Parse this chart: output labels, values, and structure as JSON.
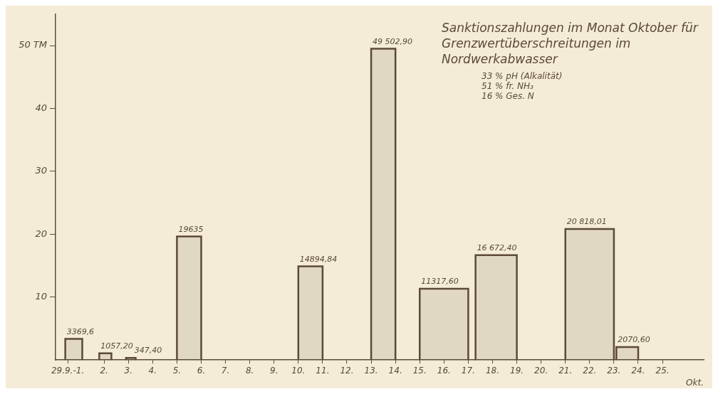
{
  "chart_data": {
    "type": "histogram",
    "title": "Sanktionszahlungen im Monat Oktober für Grenzwertüberschreitungen im Nordwerkabwasser",
    "annotations": [
      "33 % pH (Alkalität)",
      "51 % fr. NH₃",
      "16 % Ges. N",
      {
        "text": "3369,6",
        "x": 0.4,
        "y": 3.3696
      },
      {
        "text": "1057,20",
        "x": 1.8,
        "y": 1.0572
      },
      {
        "text": "347,40",
        "x": 2.9,
        "y": 0.3474
      },
      {
        "text": "19635",
        "x": 5,
        "y": 19.635
      },
      {
        "text": "14894,84",
        "x": 10,
        "y": 14.89484
      },
      {
        "text": "49 502,90",
        "x": 13,
        "y": 49.5029
      },
      {
        "text": "11317,60",
        "x": 15,
        "y": 11.3176
      },
      {
        "text": "16 672,40",
        "x": 17.3,
        "y": 16.6724
      },
      {
        "text": "20 818,01",
        "x": 21,
        "y": 20.81801
      },
      {
        "text": "2070,60",
        "x": 23.1,
        "y": 2.0706
      }
    ],
    "xlabel": "Okt.",
    "bins": [
      0.4,
      1.1,
      1.8,
      2.3,
      2.9,
      3.3,
      5,
      6,
      10,
      11,
      13,
      14,
      15,
      17,
      17.3,
      19,
      21,
      23,
      23.1,
      24
    ],
    "values": [
      3.3696,
      null,
      1.0572,
      null,
      0.3474,
      null,
      19.635,
      null,
      14.89484,
      null,
      49.5029,
      null,
      11.3176,
      null,
      16.6724,
      null,
      20.81801,
      null,
      2.0706
    ],
    "color": "#5b4a36",
    "xlim": [
      0,
      26.7
    ],
    "xticks": [
      {
        "value": 0.5,
        "label": "29.9.-1."
      },
      {
        "value": 2,
        "label": "2."
      },
      {
        "value": 3,
        "label": "3."
      },
      {
        "value": 4,
        "label": "4."
      },
      {
        "value": 5,
        "label": "5."
      },
      {
        "value": 6,
        "label": "6."
      },
      {
        "value": 7,
        "label": "7."
      },
      {
        "value": 8,
        "label": "8."
      },
      {
        "value": 9,
        "label": "9."
      },
      {
        "value": 10,
        "label": "10."
      },
      {
        "value": 11,
        "label": "11."
      },
      {
        "value": 12,
        "label": "12."
      },
      {
        "value": 13,
        "label": "13."
      },
      {
        "value": 14,
        "label": "14."
      },
      {
        "value": 15,
        "label": "15."
      },
      {
        "value": 16,
        "label": "16."
      },
      {
        "value": 17,
        "label": "17."
      },
      {
        "value": 18,
        "label": "18."
      },
      {
        "value": 19,
        "label": "19."
      },
      {
        "value": 20,
        "label": "20."
      },
      {
        "value": 21,
        "label": "21."
      },
      {
        "value": 22,
        "label": "22."
      },
      {
        "value": 23,
        "label": "23."
      },
      {
        "value": 24,
        "label": "24."
      },
      {
        "value": 25,
        "label": "25."
      }
    ],
    "ylim": [
      0,
      55
    ],
    "yticks": [
      10,
      20,
      30,
      40,
      {
        "value": 50,
        "label": "50 TM"
      }
    ]
  }
}
